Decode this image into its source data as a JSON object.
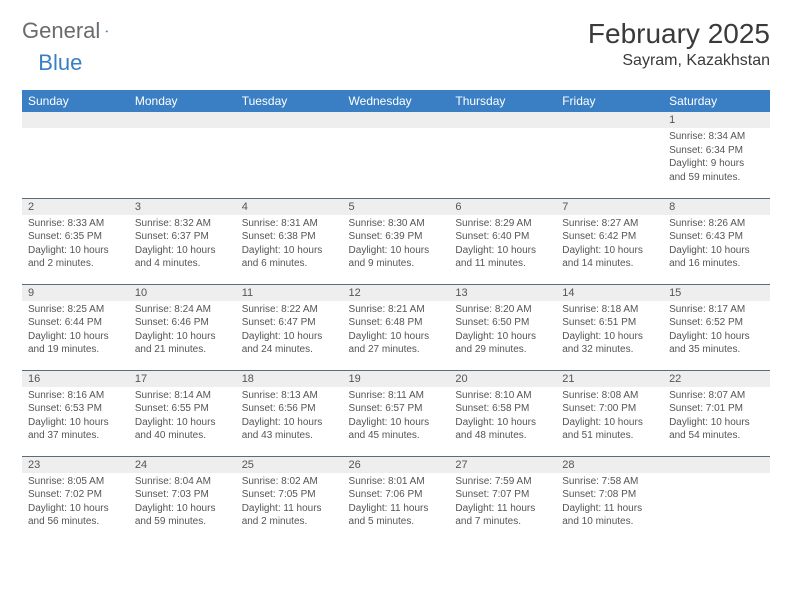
{
  "logo": {
    "word1": "General",
    "word2": "Blue"
  },
  "title": "February 2025",
  "location": "Sayram, Kazakhstan",
  "colors": {
    "header_bg": "#3a7fc4",
    "header_text": "#ffffff",
    "daynum_bg": "#eeeeee",
    "border": "#5a6b7a",
    "text": "#555555"
  },
  "weekdays": [
    "Sunday",
    "Monday",
    "Tuesday",
    "Wednesday",
    "Thursday",
    "Friday",
    "Saturday"
  ],
  "weeks": [
    [
      null,
      null,
      null,
      null,
      null,
      null,
      {
        "n": "1",
        "sunrise": "Sunrise: 8:34 AM",
        "sunset": "Sunset: 6:34 PM",
        "day1": "Daylight: 9 hours",
        "day2": "and 59 minutes."
      }
    ],
    [
      {
        "n": "2",
        "sunrise": "Sunrise: 8:33 AM",
        "sunset": "Sunset: 6:35 PM",
        "day1": "Daylight: 10 hours",
        "day2": "and 2 minutes."
      },
      {
        "n": "3",
        "sunrise": "Sunrise: 8:32 AM",
        "sunset": "Sunset: 6:37 PM",
        "day1": "Daylight: 10 hours",
        "day2": "and 4 minutes."
      },
      {
        "n": "4",
        "sunrise": "Sunrise: 8:31 AM",
        "sunset": "Sunset: 6:38 PM",
        "day1": "Daylight: 10 hours",
        "day2": "and 6 minutes."
      },
      {
        "n": "5",
        "sunrise": "Sunrise: 8:30 AM",
        "sunset": "Sunset: 6:39 PM",
        "day1": "Daylight: 10 hours",
        "day2": "and 9 minutes."
      },
      {
        "n": "6",
        "sunrise": "Sunrise: 8:29 AM",
        "sunset": "Sunset: 6:40 PM",
        "day1": "Daylight: 10 hours",
        "day2": "and 11 minutes."
      },
      {
        "n": "7",
        "sunrise": "Sunrise: 8:27 AM",
        "sunset": "Sunset: 6:42 PM",
        "day1": "Daylight: 10 hours",
        "day2": "and 14 minutes."
      },
      {
        "n": "8",
        "sunrise": "Sunrise: 8:26 AM",
        "sunset": "Sunset: 6:43 PM",
        "day1": "Daylight: 10 hours",
        "day2": "and 16 minutes."
      }
    ],
    [
      {
        "n": "9",
        "sunrise": "Sunrise: 8:25 AM",
        "sunset": "Sunset: 6:44 PM",
        "day1": "Daylight: 10 hours",
        "day2": "and 19 minutes."
      },
      {
        "n": "10",
        "sunrise": "Sunrise: 8:24 AM",
        "sunset": "Sunset: 6:46 PM",
        "day1": "Daylight: 10 hours",
        "day2": "and 21 minutes."
      },
      {
        "n": "11",
        "sunrise": "Sunrise: 8:22 AM",
        "sunset": "Sunset: 6:47 PM",
        "day1": "Daylight: 10 hours",
        "day2": "and 24 minutes."
      },
      {
        "n": "12",
        "sunrise": "Sunrise: 8:21 AM",
        "sunset": "Sunset: 6:48 PM",
        "day1": "Daylight: 10 hours",
        "day2": "and 27 minutes."
      },
      {
        "n": "13",
        "sunrise": "Sunrise: 8:20 AM",
        "sunset": "Sunset: 6:50 PM",
        "day1": "Daylight: 10 hours",
        "day2": "and 29 minutes."
      },
      {
        "n": "14",
        "sunrise": "Sunrise: 8:18 AM",
        "sunset": "Sunset: 6:51 PM",
        "day1": "Daylight: 10 hours",
        "day2": "and 32 minutes."
      },
      {
        "n": "15",
        "sunrise": "Sunrise: 8:17 AM",
        "sunset": "Sunset: 6:52 PM",
        "day1": "Daylight: 10 hours",
        "day2": "and 35 minutes."
      }
    ],
    [
      {
        "n": "16",
        "sunrise": "Sunrise: 8:16 AM",
        "sunset": "Sunset: 6:53 PM",
        "day1": "Daylight: 10 hours",
        "day2": "and 37 minutes."
      },
      {
        "n": "17",
        "sunrise": "Sunrise: 8:14 AM",
        "sunset": "Sunset: 6:55 PM",
        "day1": "Daylight: 10 hours",
        "day2": "and 40 minutes."
      },
      {
        "n": "18",
        "sunrise": "Sunrise: 8:13 AM",
        "sunset": "Sunset: 6:56 PM",
        "day1": "Daylight: 10 hours",
        "day2": "and 43 minutes."
      },
      {
        "n": "19",
        "sunrise": "Sunrise: 8:11 AM",
        "sunset": "Sunset: 6:57 PM",
        "day1": "Daylight: 10 hours",
        "day2": "and 45 minutes."
      },
      {
        "n": "20",
        "sunrise": "Sunrise: 8:10 AM",
        "sunset": "Sunset: 6:58 PM",
        "day1": "Daylight: 10 hours",
        "day2": "and 48 minutes."
      },
      {
        "n": "21",
        "sunrise": "Sunrise: 8:08 AM",
        "sunset": "Sunset: 7:00 PM",
        "day1": "Daylight: 10 hours",
        "day2": "and 51 minutes."
      },
      {
        "n": "22",
        "sunrise": "Sunrise: 8:07 AM",
        "sunset": "Sunset: 7:01 PM",
        "day1": "Daylight: 10 hours",
        "day2": "and 54 minutes."
      }
    ],
    [
      {
        "n": "23",
        "sunrise": "Sunrise: 8:05 AM",
        "sunset": "Sunset: 7:02 PM",
        "day1": "Daylight: 10 hours",
        "day2": "and 56 minutes."
      },
      {
        "n": "24",
        "sunrise": "Sunrise: 8:04 AM",
        "sunset": "Sunset: 7:03 PM",
        "day1": "Daylight: 10 hours",
        "day2": "and 59 minutes."
      },
      {
        "n": "25",
        "sunrise": "Sunrise: 8:02 AM",
        "sunset": "Sunset: 7:05 PM",
        "day1": "Daylight: 11 hours",
        "day2": "and 2 minutes."
      },
      {
        "n": "26",
        "sunrise": "Sunrise: 8:01 AM",
        "sunset": "Sunset: 7:06 PM",
        "day1": "Daylight: 11 hours",
        "day2": "and 5 minutes."
      },
      {
        "n": "27",
        "sunrise": "Sunrise: 7:59 AM",
        "sunset": "Sunset: 7:07 PM",
        "day1": "Daylight: 11 hours",
        "day2": "and 7 minutes."
      },
      {
        "n": "28",
        "sunrise": "Sunrise: 7:58 AM",
        "sunset": "Sunset: 7:08 PM",
        "day1": "Daylight: 11 hours",
        "day2": "and 10 minutes."
      },
      null
    ]
  ]
}
